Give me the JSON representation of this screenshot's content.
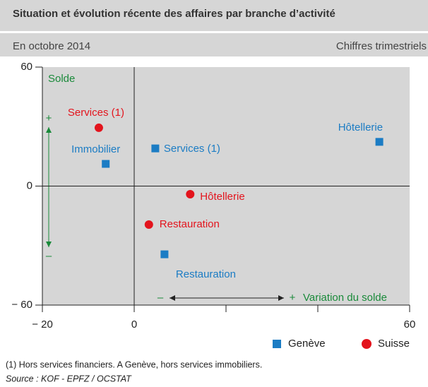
{
  "chart_data": {
    "type": "scatter",
    "title": "Situation et évolution récente des affaires par branche d’activité",
    "subtitle": "En octobre 2014",
    "subtitle_right": "Chiffres trimestriels",
    "xlim": [
      -20,
      60
    ],
    "ylim": [
      -60,
      60
    ],
    "xticks": [
      {
        "value": -20,
        "label": "− 20"
      },
      0,
      60
    ],
    "xminorticks": [
      20,
      40
    ],
    "yticks": [
      {
        "value": -60,
        "label": "− 60"
      },
      0,
      60
    ],
    "series": [
      {
        "name": "Genève",
        "color": "#1b7cc4",
        "marker": "square",
        "labels": [
          "Hôtellerie",
          "Services (1)",
          "Immobilier",
          "Restauration"
        ],
        "x": [
          53.4,
          4.6,
          -6.2,
          6.6
        ],
        "values": [
          22.3,
          19,
          11.2,
          -34.4
        ]
      },
      {
        "name": "Suisse",
        "color": "#e3141d",
        "marker": "circle",
        "labels": [
          "Services (1)",
          "Hôtellerie",
          "Restauration"
        ],
        "x": [
          -7.7,
          12.2,
          3.2
        ],
        "values": [
          29.4,
          -4.1,
          -19.4
        ]
      }
    ],
    "annotations": {
      "y_label": "Solde",
      "x_label": "Variation du solde",
      "plus": "+",
      "minus": "–"
    },
    "footnote": "(1)  Hors services financiers. A Genève, hors services immobiliers.",
    "source": "Source : KOF - EPFZ / OCSTAT"
  }
}
